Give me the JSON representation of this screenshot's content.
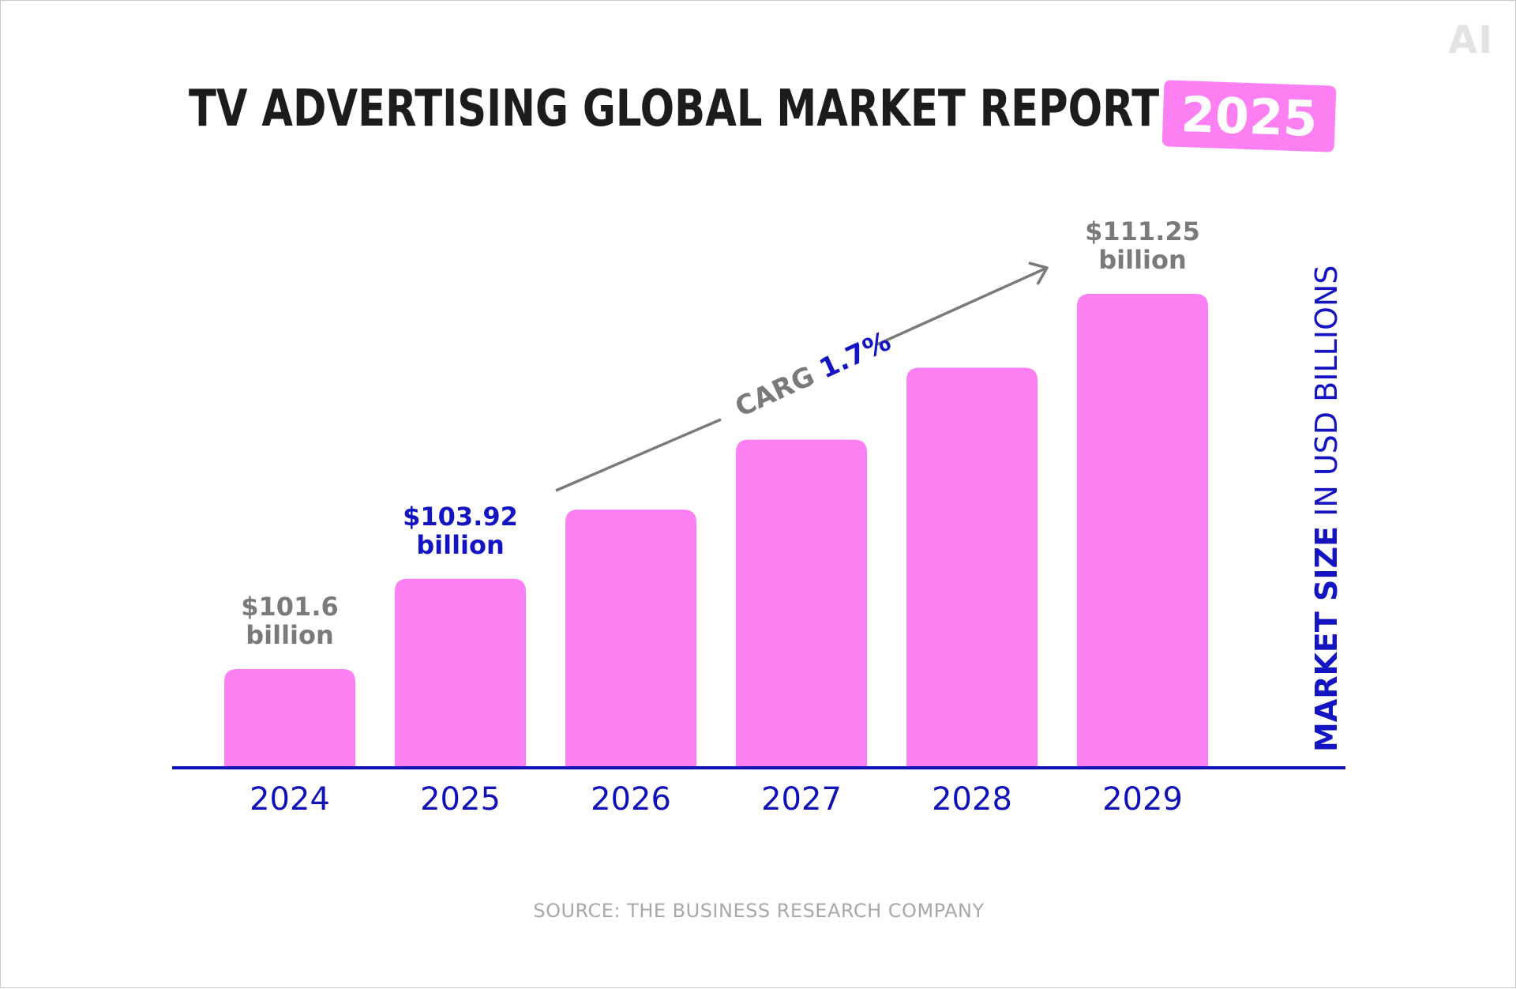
{
  "logo": "AI",
  "header": {
    "title": "TV ADVERTISING GLOBAL MARKET REPORT",
    "year_badge": "2025"
  },
  "colors": {
    "bar": "#fd80f3",
    "axis": "#1111b8",
    "highlight": "#1414c2",
    "muted": "#7a7a7a",
    "title": "#1c1c1c"
  },
  "chart_data": {
    "type": "bar",
    "title": "TV ADVERTISING GLOBAL MARKET REPORT 2025",
    "categories": [
      "2024",
      "2025",
      "2026",
      "2027",
      "2028",
      "2029"
    ],
    "values": [
      101.6,
      103.92,
      105.7,
      107.5,
      109.35,
      111.25
    ],
    "ylim": [
      99.1,
      112.5
    ],
    "ylabel_bold": "MARKET SIZE",
    "ylabel_rest": " IN USD BILLIONS",
    "xlabel": "",
    "grid": false,
    "data_labels": [
      {
        "index": 0,
        "value": "$101.6",
        "unit": "billion",
        "style": "gray"
      },
      {
        "index": 1,
        "value": "$103.92",
        "unit": "billion",
        "style": "blue"
      },
      {
        "index": 5,
        "value": "$111.25",
        "unit": "billion",
        "style": "gray"
      }
    ],
    "annotation": {
      "label": "CARG ",
      "value": "1.7%"
    }
  },
  "source": "SOURCE: THE BUSINESS RESEARCH COMPANY"
}
